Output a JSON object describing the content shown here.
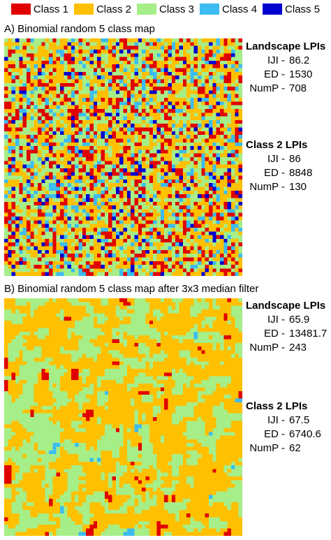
{
  "colors": {
    "class1": "#e00000",
    "class2": "#ffc000",
    "class3": "#a6ee88",
    "class4": "#3cbcf0",
    "class5": "#0000d0"
  },
  "legend": [
    {
      "label": "Class 1",
      "color": "#e00000"
    },
    {
      "label": "Class 2",
      "color": "#ffc000"
    },
    {
      "label": "Class 3",
      "color": "#a6ee88"
    },
    {
      "label": "Class 4",
      "color": "#3cbcf0"
    },
    {
      "label": "Class 5",
      "color": "#0000d0"
    }
  ],
  "panel_a": {
    "title": "A) Binomial random 5 class map",
    "landscape": {
      "heading": "Landscape LPIs",
      "iji_label": "IJI -",
      "iji": "86.2",
      "ed_label": "ED -",
      "ed": "1530",
      "nump_label": "NumP -",
      "nump": "708"
    },
    "class2": {
      "heading": "Class 2 LPIs",
      "iji_label": "IJI -",
      "iji": "86",
      "ed_label": "ED -",
      "ed": "8848",
      "nump_label": "NumP -",
      "nump": "130"
    }
  },
  "panel_b": {
    "title": "B) Binomial random 5 class map after 3x3 median filter",
    "landscape": {
      "heading": "Landscape LPIs",
      "iji_label": "IJI -",
      "iji": "65.9",
      "ed_label": "ED -",
      "ed": "13481.7",
      "nump_label": "NumP -",
      "nump": "243"
    },
    "class2": {
      "heading": "Class 2 LPIs",
      "iji_label": "IJI -",
      "iji": "67.5",
      "ed_label": "ED -",
      "ed": "6740.6",
      "nump_label": "NumP -",
      "nump": "62"
    }
  }
}
